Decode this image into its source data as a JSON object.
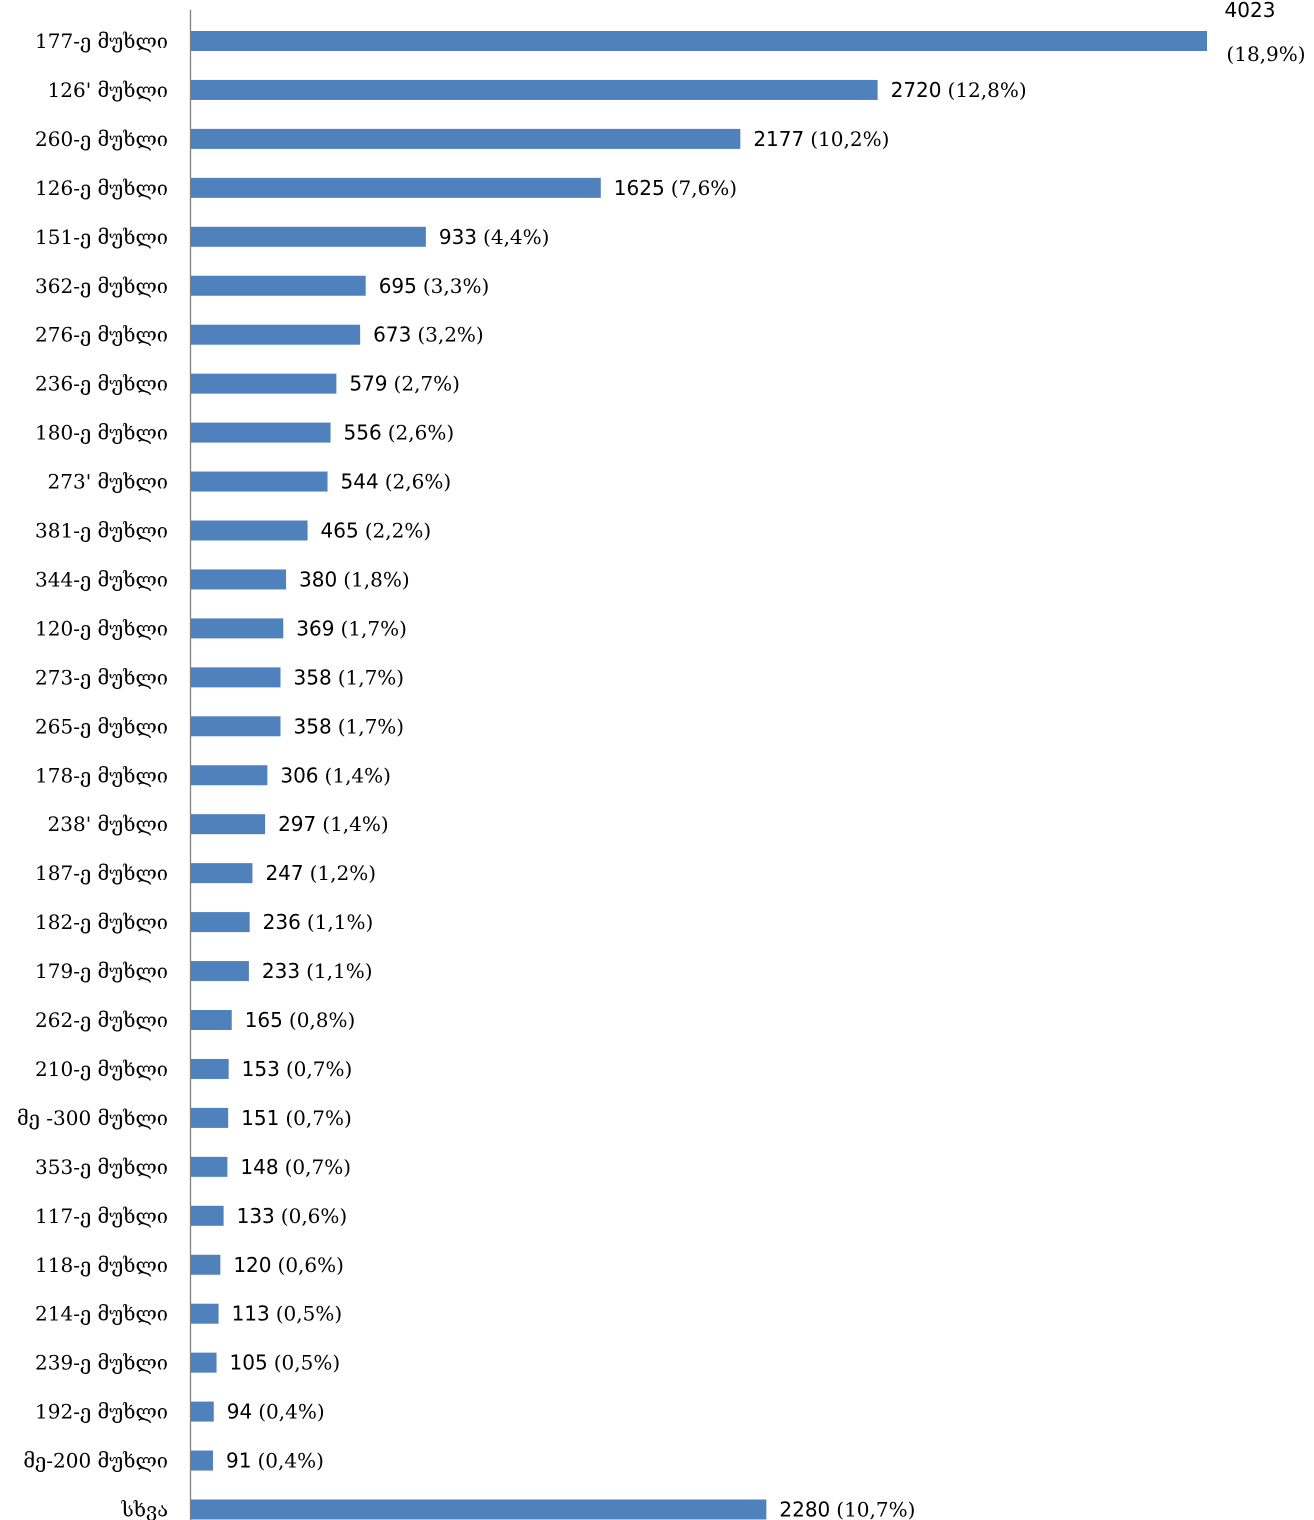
{
  "chart_data": {
    "type": "bar",
    "orientation": "horizontal",
    "title": "",
    "xlabel": "",
    "ylabel": "",
    "xlim": [
      0,
      4023
    ],
    "grid": false,
    "legend": "none",
    "bar_color": "#4F81BD",
    "axis_color": "#808080",
    "categories": [
      "177-ე მუხლი",
      "126' მუხლი",
      "260-ე მუხლი",
      "126-ე მუხლი",
      "151-ე მუხლი",
      "362-ე მუხლი",
      "276-ე მუხლი",
      "236-ე მუხლი",
      "180-ე მუხლი",
      "273' მუხლი",
      "381-ე მუხლი",
      "344-ე მუხლი",
      "120-ე მუხლი",
      "273-ე მუხლი",
      "265-ე მუხლი",
      "178-ე მუხლი",
      "238' მუხლი",
      "187-ე მუხლი",
      "182-ე მუხლი",
      "179-ე მუხლი",
      "262-ე მუხლი",
      "210-ე მუხლი",
      "მე -300 მუხლი",
      "353-ე მუხლი",
      "117-ე მუხლი",
      "118-ე მუხლი",
      "214-ე მუხლი",
      "239-ე მუხლი",
      "192-ე მუხლი",
      "მე-200 მუხლი",
      "სხვა"
    ],
    "values": [
      4023,
      2720,
      2177,
      1625,
      933,
      695,
      673,
      579,
      556,
      544,
      465,
      380,
      369,
      358,
      358,
      306,
      297,
      247,
      236,
      233,
      165,
      153,
      151,
      148,
      133,
      120,
      113,
      105,
      94,
      91,
      2280
    ],
    "percent_labels": [
      "(18,9%)",
      "(12,8%)",
      "(10,2%)",
      "(7,6%)",
      "(4,4%)",
      "(3,3%)",
      "(3,2%)",
      "(2,7%)",
      "(2,6%)",
      "(2,6%)",
      "(2,2%)",
      "(1,8%)",
      "(1,7%)",
      "(1,7%)",
      "(1,7%)",
      "(1,4%)",
      "(1,4%)",
      "(1,2%)",
      "(1,1%)",
      "(1,1%)",
      "(0,8%)",
      "(0,7%)",
      "(0,7%)",
      "(0,7%)",
      "(0,6%)",
      "(0,6%)",
      "(0,5%)",
      "(0,5%)",
      "(0,4%)",
      "(0,4%)",
      "(10,7%)"
    ]
  }
}
